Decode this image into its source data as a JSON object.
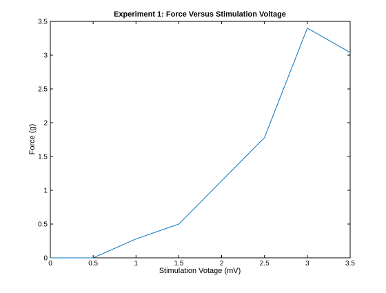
{
  "chart_data": {
    "type": "line",
    "title": "Experiment 1: Force Versus Stimulation Voltage",
    "xlabel": "Stimulation Votage (mV)",
    "ylabel": "Force (g)",
    "xlim": [
      0,
      3.5
    ],
    "ylim": [
      0,
      3.5
    ],
    "xticks": [
      "0",
      "0.5",
      "1",
      "1.5",
      "2",
      "2.5",
      "3",
      "3.5"
    ],
    "yticks": [
      "0",
      "0.5",
      "1",
      "1.5",
      "2",
      "2.5",
      "3",
      "3.5"
    ],
    "grid": false,
    "series": [
      {
        "color": "#0072bd",
        "x": [
          0,
          0.5,
          1,
          1.5,
          2.5,
          3,
          3.5
        ],
        "y": [
          0,
          0,
          0.28,
          0.5,
          1.78,
          3.4,
          3.04
        ]
      }
    ]
  }
}
